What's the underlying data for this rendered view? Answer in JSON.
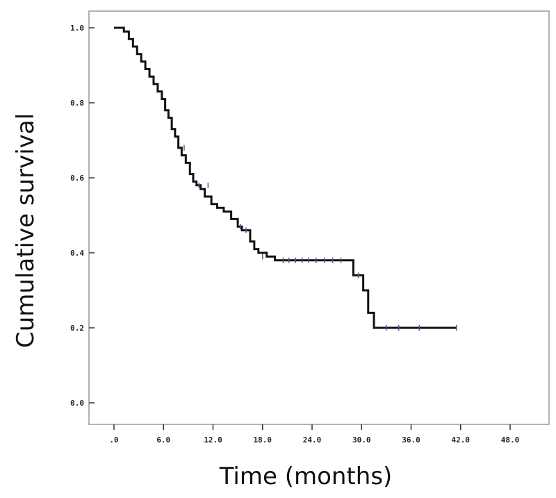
{
  "chart_data": {
    "type": "line",
    "xlabel": "Time (months)",
    "ylabel": "Cumulative survival",
    "xlim": [
      0,
      48
    ],
    "ylim": [
      0,
      1
    ],
    "x_ticks": [
      0,
      6,
      12,
      18,
      24,
      30,
      36,
      42,
      48
    ],
    "x_tick_labels": [
      ".0",
      "6.0",
      "12.0",
      "18.0",
      "24.0",
      "30.0",
      "36.0",
      "42.0",
      "48.0"
    ],
    "y_ticks": [
      0,
      0.2,
      0.4,
      0.6,
      0.8,
      1.0
    ],
    "y_tick_labels": [
      "0.0",
      "0.2",
      "0.4",
      "0.6",
      "0.8",
      "1.0"
    ],
    "grid": false,
    "line_color": "#111111",
    "censor_color": "#4a5aa8",
    "series": [
      {
        "step": true,
        "x": [
          0,
          1.2,
          1.8,
          2.3,
          2.8,
          3.3,
          3.8,
          4.3,
          4.8,
          5.3,
          5.8,
          6.2,
          6.6,
          7.0,
          7.4,
          7.8,
          8.2,
          8.7,
          9.2,
          9.6,
          10.0,
          10.5,
          11.0,
          11.8,
          12.5,
          13.3,
          14.2,
          15.0,
          15.5,
          16.5,
          17.0,
          17.5,
          18.5,
          19.5,
          29.0,
          30.2,
          30.8,
          31.5,
          41.5
        ],
        "y": [
          1.0,
          0.99,
          0.97,
          0.95,
          0.93,
          0.91,
          0.89,
          0.87,
          0.85,
          0.83,
          0.81,
          0.78,
          0.76,
          0.73,
          0.71,
          0.68,
          0.66,
          0.64,
          0.61,
          0.59,
          0.58,
          0.57,
          0.55,
          0.53,
          0.52,
          0.51,
          0.49,
          0.47,
          0.46,
          0.43,
          0.41,
          0.4,
          0.39,
          0.38,
          0.34,
          0.3,
          0.24,
          0.2,
          0.2
        ]
      }
    ],
    "censored": [
      {
        "x": 8.5,
        "y": 0.68
      },
      {
        "x": 10.3,
        "y": 0.58
      },
      {
        "x": 11.4,
        "y": 0.58
      },
      {
        "x": 15.3,
        "y": 0.47
      },
      {
        "x": 16.0,
        "y": 0.46
      },
      {
        "x": 18.0,
        "y": 0.39
      },
      {
        "x": 20.5,
        "y": 0.38
      },
      {
        "x": 21.2,
        "y": 0.38
      },
      {
        "x": 22.0,
        "y": 0.38
      },
      {
        "x": 22.8,
        "y": 0.38
      },
      {
        "x": 23.6,
        "y": 0.38
      },
      {
        "x": 24.5,
        "y": 0.38
      },
      {
        "x": 25.5,
        "y": 0.38
      },
      {
        "x": 26.5,
        "y": 0.38
      },
      {
        "x": 27.5,
        "y": 0.38
      },
      {
        "x": 29.6,
        "y": 0.34
      },
      {
        "x": 33.0,
        "y": 0.2
      },
      {
        "x": 34.5,
        "y": 0.2
      },
      {
        "x": 37.0,
        "y": 0.2
      },
      {
        "x": 41.5,
        "y": 0.2
      }
    ]
  }
}
